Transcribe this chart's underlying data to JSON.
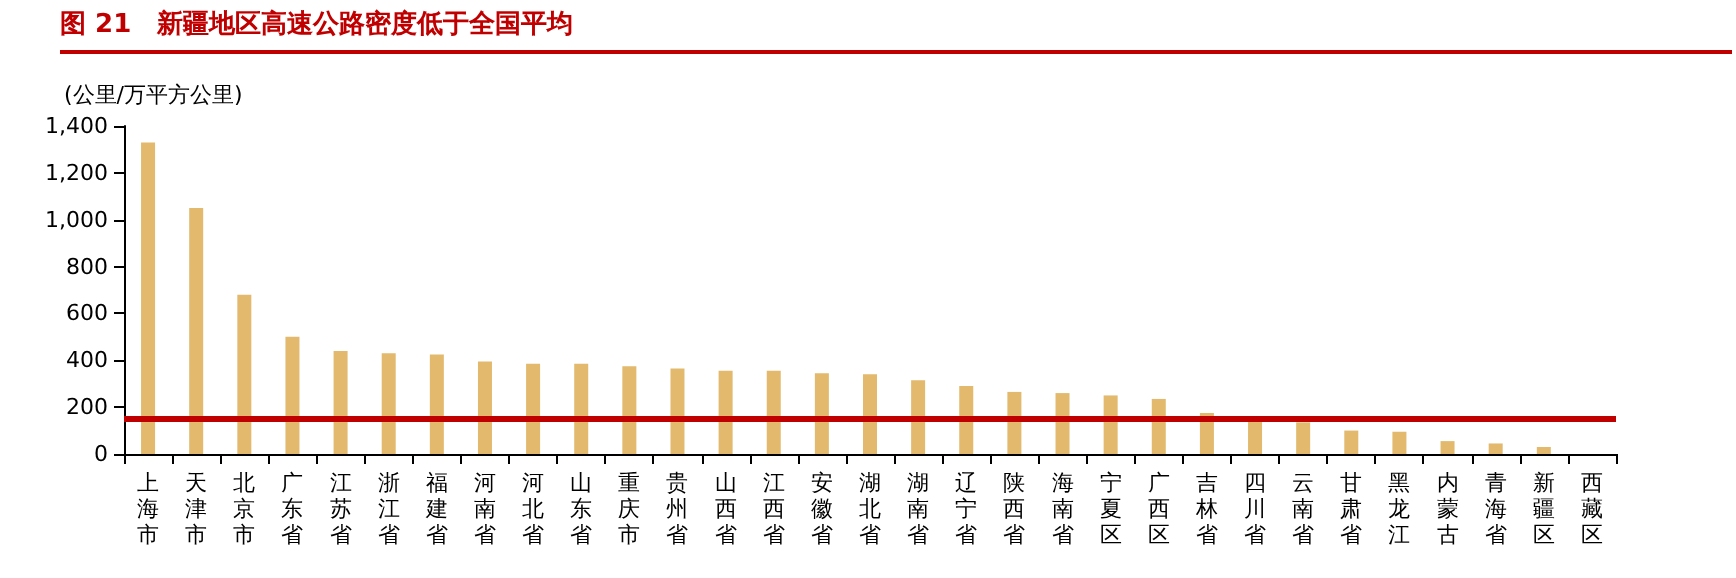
{
  "chart_data": {
    "type": "bar",
    "title": "图 21　新疆地区高速公路密度低于全国平均",
    "ylabel": "(公里/万平方公里)",
    "categories": [
      "上海市",
      "天津市",
      "北京市",
      "广东省",
      "江苏省",
      "浙江省",
      "福建省",
      "河南省",
      "河北省",
      "山东省",
      "重庆市",
      "贵州省",
      "山西省",
      "江西省",
      "安徽省",
      "湖北省",
      "湖南省",
      "辽宁省",
      "陕西省",
      "海南省",
      "宁夏区",
      "广西区",
      "吉林省",
      "四川省",
      "云南省",
      "甘肃省",
      "黑龙江",
      "内蒙古",
      "青海省",
      "新疆区",
      "西藏区"
    ],
    "values": [
      1330,
      1050,
      680,
      500,
      440,
      430,
      425,
      395,
      385,
      385,
      375,
      365,
      355,
      355,
      345,
      340,
      315,
      290,
      265,
      260,
      250,
      235,
      175,
      150,
      135,
      100,
      95,
      55,
      45,
      30,
      0
    ],
    "color": "#e2b96d",
    "ylim": [
      0,
      1400
    ],
    "yticks": [
      0,
      200,
      400,
      600,
      800,
      {
        "value": 1000,
        "label": "1,000"
      },
      {
        "value": 1200,
        "label": "1,200"
      },
      {
        "value": 1400,
        "label": "1,400"
      }
    ],
    "grid": false,
    "ref_lines": [
      {
        "axis": "y",
        "value": 148,
        "color": "#c00000",
        "line_style": "solid"
      }
    ]
  }
}
